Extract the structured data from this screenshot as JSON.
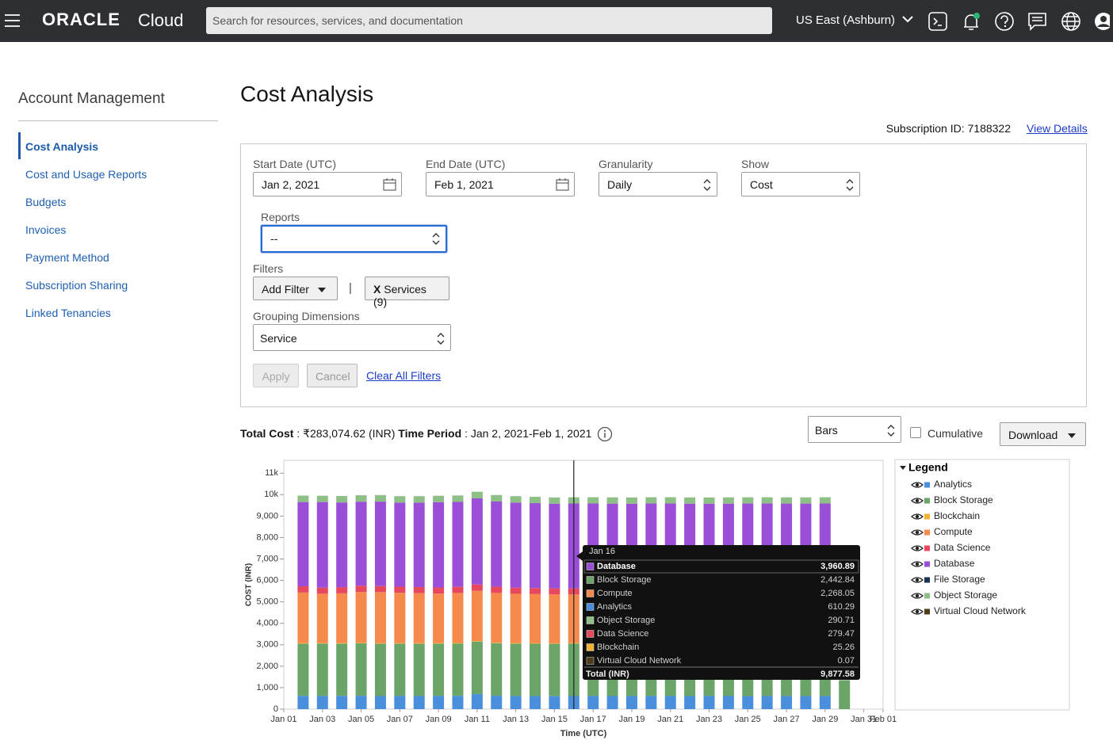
{
  "header": {
    "brand": "ORACLE",
    "product": "Cloud",
    "search_placeholder": "Search for resources, services, and documentation",
    "region": "US East (Ashburn)"
  },
  "sidebar": {
    "title": "Account Management",
    "items": [
      {
        "label": "Cost Analysis",
        "active": true
      },
      {
        "label": "Cost and Usage Reports"
      },
      {
        "label": "Budgets"
      },
      {
        "label": "Invoices"
      },
      {
        "label": "Payment Method"
      },
      {
        "label": "Subscription Sharing"
      },
      {
        "label": "Linked Tenancies"
      }
    ]
  },
  "page": {
    "title": "Cost Analysis",
    "subscription": "Subscription ID: 7188322",
    "view_details": "View Details"
  },
  "filters": {
    "start_date": {
      "label": "Start Date (UTC)",
      "value": "Jan 2, 2021"
    },
    "end_date": {
      "label": "End Date (UTC)",
      "value": "Feb 1, 2021"
    },
    "granularity": {
      "label": "Granularity",
      "value": "Daily"
    },
    "show": {
      "label": "Show",
      "value": "Cost"
    },
    "reports": {
      "label": "Reports",
      "value": "--"
    },
    "filters_label": "Filters",
    "add_filter": "Add Filter",
    "separator": "|",
    "chip_remove": "X",
    "chip": "Services (9)",
    "grouping": {
      "label": "Grouping Dimensions",
      "value": "Service"
    },
    "apply": "Apply",
    "cancel": "Cancel",
    "clear": "Clear All Filters"
  },
  "summary": {
    "total_label": "Total Cost",
    "total_value": ": ₹283,074.62 (INR)",
    "period_label": "Time Period",
    "period_value": ": Jan 2, 2021-Feb 1, 2021"
  },
  "controls": {
    "chart_style": "Bars",
    "cumulative": "Cumulative",
    "download": "Download"
  },
  "chart_data": {
    "type": "stacked_bar",
    "xlabel": "Time (UTC)",
    "ylabel": "COST (INR)",
    "legend_title": "Legend",
    "grid": false,
    "x": [
      2,
      3,
      4,
      5,
      6,
      7,
      8,
      9,
      10,
      11,
      12,
      13,
      14,
      15,
      16,
      17,
      18,
      19,
      20,
      21,
      22,
      23,
      24,
      25,
      26,
      27,
      28,
      29,
      30
    ],
    "xlim": [
      1,
      32
    ],
    "xticks": [
      {
        "value": 1,
        "label": "Jan 01"
      },
      {
        "value": 3,
        "label": "Jan 03"
      },
      {
        "value": 5,
        "label": "Jan 05"
      },
      {
        "value": 7,
        "label": "Jan 07"
      },
      {
        "value": 9,
        "label": "Jan 09"
      },
      {
        "value": 11,
        "label": "Jan 11"
      },
      {
        "value": 13,
        "label": "Jan 13"
      },
      {
        "value": 15,
        "label": "Jan 15"
      },
      {
        "value": 17,
        "label": "Jan 17"
      },
      {
        "value": 19,
        "label": "Jan 19"
      },
      {
        "value": 21,
        "label": "Jan 21"
      },
      {
        "value": 23,
        "label": "Jan 23"
      },
      {
        "value": 25,
        "label": "Jan 25"
      },
      {
        "value": 27,
        "label": "Jan 27"
      },
      {
        "value": 29,
        "label": "Jan 29"
      },
      {
        "value": 31,
        "label": "Jan 31"
      },
      {
        "value": 32,
        "label": "Feb 01"
      }
    ],
    "ylim": [
      0,
      11600
    ],
    "yticks": [
      0,
      {
        "value": 1000,
        "label": "1,000"
      },
      {
        "value": 2000,
        "label": "2,000"
      },
      {
        "value": 3000,
        "label": "3,000"
      },
      {
        "value": 4000,
        "label": "4,000"
      },
      {
        "value": 5000,
        "label": "5,000"
      },
      {
        "value": 6000,
        "label": "6,000"
      },
      {
        "value": 7000,
        "label": "7,000"
      },
      {
        "value": 8000,
        "label": "8,000"
      },
      {
        "value": 9000,
        "label": "9,000"
      },
      {
        "value": 10000,
        "label": "10k"
      },
      {
        "value": 11000,
        "label": "11k"
      }
    ],
    "series": [
      {
        "name": "Analytics",
        "color": "#4a8fdc",
        "values": [
          620,
          615,
          618,
          622,
          610,
          612,
          608,
          615,
          620,
          700,
          625,
          612,
          608,
          605,
          610.29,
          612,
          610,
          608,
          614,
          611,
          609,
          612,
          610,
          607,
          611,
          613,
          609,
          612,
          0
        ]
      },
      {
        "name": "Block Storage",
        "color": "#6aa469",
        "values": [
          2430,
          2440,
          2435,
          2445,
          2440,
          2438,
          2442,
          2436,
          2440,
          2450,
          2448,
          2441,
          2440,
          2439,
          2442.84,
          2440,
          2441,
          2439,
          2442,
          2440,
          2438,
          2443,
          2441,
          2440,
          2442,
          2439,
          2441,
          2440,
          1350
        ]
      },
      {
        "name": "Blockchain",
        "color": "#f2b233",
        "values": [
          25,
          25,
          25,
          25,
          25,
          25,
          25,
          25,
          25,
          25,
          25,
          25,
          25,
          25,
          25.26,
          25,
          25,
          25,
          25,
          25,
          25,
          25,
          25,
          25,
          25,
          25,
          25,
          25,
          0
        ]
      },
      {
        "name": "Compute",
        "color": "#f68a4c",
        "values": [
          2360,
          2300,
          2320,
          2370,
          2380,
          2350,
          2330,
          2310,
          2330,
          2340,
          2320,
          2300,
          2290,
          2280,
          2268.05,
          2270,
          2275,
          2272,
          2268,
          2270,
          2266,
          2271,
          2269,
          2273,
          2270,
          2268,
          2272,
          2270,
          0
        ]
      },
      {
        "name": "Data Science",
        "color": "#e8485e",
        "values": [
          290,
          285,
          288,
          290,
          280,
          282,
          285,
          284,
          286,
          295,
          292,
          284,
          281,
          280,
          279.47,
          280,
          281,
          279,
          280,
          282,
          280,
          279,
          281,
          280,
          280,
          279,
          281,
          280,
          0
        ]
      },
      {
        "name": "Database",
        "color": "#9b4fd9",
        "values": [
          3930,
          3990,
          3950,
          3920,
          3940,
          3920,
          3940,
          3980,
          3960,
          4020,
          3970,
          3970,
          3960,
          3950,
          3960.89,
          3960,
          3950,
          3955,
          3960,
          3958,
          3962,
          3950,
          3955,
          3960,
          3958,
          3960,
          3955,
          3960,
          0
        ]
      },
      {
        "name": "File Storage",
        "color": "#1d3552",
        "values": [
          0,
          0,
          0,
          0,
          0,
          0,
          0,
          0,
          0,
          0,
          0,
          0,
          0,
          0,
          0,
          0,
          0,
          0,
          0,
          0,
          0,
          0,
          0,
          0,
          0,
          0,
          0,
          0,
          0
        ]
      },
      {
        "name": "Object Storage",
        "color": "#8dbf86",
        "values": [
          300,
          295,
          300,
          298,
          305,
          302,
          300,
          298,
          300,
          305,
          303,
          298,
          295,
          292,
          290.71,
          292,
          291,
          293,
          290,
          292,
          291,
          290,
          293,
          291,
          292,
          291,
          290,
          292,
          0
        ]
      },
      {
        "name": "Virtual Cloud Network",
        "color": "#4f3b1b",
        "values": [
          0.07,
          0.07,
          0.07,
          0.07,
          0.07,
          0.07,
          0.07,
          0.07,
          0.07,
          0.07,
          0.07,
          0.07,
          0.07,
          0.07,
          0.07,
          0.07,
          0.07,
          0.07,
          0.07,
          0.07,
          0.07,
          0.07,
          0.07,
          0.07,
          0.07,
          0.07,
          0.07,
          0.07,
          0
        ]
      }
    ],
    "tooltip": {
      "x": 16,
      "title": "Jan 16",
      "rows": [
        {
          "name": "Database",
          "value": "3,960.89"
        },
        {
          "name": "Block Storage",
          "value": "2,442.84"
        },
        {
          "name": "Compute",
          "value": "2,268.05"
        },
        {
          "name": "Analytics",
          "value": "610.29"
        },
        {
          "name": "Object Storage",
          "value": "290.71"
        },
        {
          "name": "Data Science",
          "value": "279.47"
        },
        {
          "name": "Blockchain",
          "value": "25.26"
        },
        {
          "name": "Virtual Cloud Network",
          "value": "0.07"
        }
      ],
      "total": {
        "name": "Total (INR)",
        "value": "9,877.58"
      }
    }
  }
}
